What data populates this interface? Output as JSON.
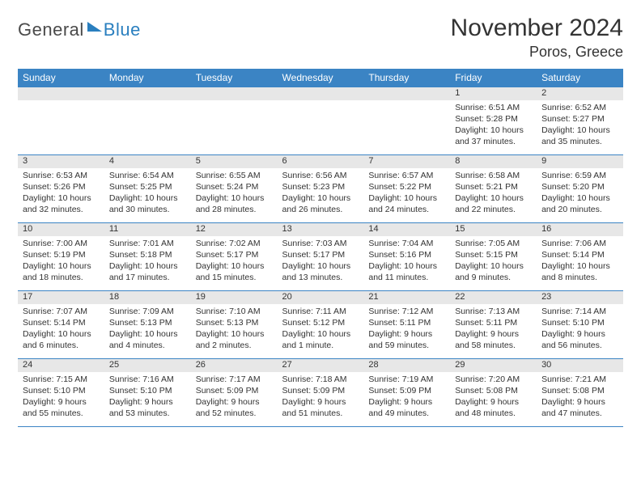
{
  "logo": {
    "text1": "General",
    "text2": "Blue"
  },
  "title": "November 2024",
  "location": "Poros, Greece",
  "colors": {
    "header_bg": "#3b84c4",
    "header_text": "#ffffff",
    "daynum_bg": "#e7e7e7",
    "border": "#3b84c4",
    "text": "#333333",
    "logo_gray": "#4a4a4a",
    "logo_blue": "#2a7fbf"
  },
  "weekdays": [
    "Sunday",
    "Monday",
    "Tuesday",
    "Wednesday",
    "Thursday",
    "Friday",
    "Saturday"
  ],
  "weeks": [
    [
      null,
      null,
      null,
      null,
      null,
      {
        "n": "1",
        "sr": "6:51 AM",
        "ss": "5:28 PM",
        "dl": "10 hours and 37 minutes."
      },
      {
        "n": "2",
        "sr": "6:52 AM",
        "ss": "5:27 PM",
        "dl": "10 hours and 35 minutes."
      }
    ],
    [
      {
        "n": "3",
        "sr": "6:53 AM",
        "ss": "5:26 PM",
        "dl": "10 hours and 32 minutes."
      },
      {
        "n": "4",
        "sr": "6:54 AM",
        "ss": "5:25 PM",
        "dl": "10 hours and 30 minutes."
      },
      {
        "n": "5",
        "sr": "6:55 AM",
        "ss": "5:24 PM",
        "dl": "10 hours and 28 minutes."
      },
      {
        "n": "6",
        "sr": "6:56 AM",
        "ss": "5:23 PM",
        "dl": "10 hours and 26 minutes."
      },
      {
        "n": "7",
        "sr": "6:57 AM",
        "ss": "5:22 PM",
        "dl": "10 hours and 24 minutes."
      },
      {
        "n": "8",
        "sr": "6:58 AM",
        "ss": "5:21 PM",
        "dl": "10 hours and 22 minutes."
      },
      {
        "n": "9",
        "sr": "6:59 AM",
        "ss": "5:20 PM",
        "dl": "10 hours and 20 minutes."
      }
    ],
    [
      {
        "n": "10",
        "sr": "7:00 AM",
        "ss": "5:19 PM",
        "dl": "10 hours and 18 minutes."
      },
      {
        "n": "11",
        "sr": "7:01 AM",
        "ss": "5:18 PM",
        "dl": "10 hours and 17 minutes."
      },
      {
        "n": "12",
        "sr": "7:02 AM",
        "ss": "5:17 PM",
        "dl": "10 hours and 15 minutes."
      },
      {
        "n": "13",
        "sr": "7:03 AM",
        "ss": "5:17 PM",
        "dl": "10 hours and 13 minutes."
      },
      {
        "n": "14",
        "sr": "7:04 AM",
        "ss": "5:16 PM",
        "dl": "10 hours and 11 minutes."
      },
      {
        "n": "15",
        "sr": "7:05 AM",
        "ss": "5:15 PM",
        "dl": "10 hours and 9 minutes."
      },
      {
        "n": "16",
        "sr": "7:06 AM",
        "ss": "5:14 PM",
        "dl": "10 hours and 8 minutes."
      }
    ],
    [
      {
        "n": "17",
        "sr": "7:07 AM",
        "ss": "5:14 PM",
        "dl": "10 hours and 6 minutes."
      },
      {
        "n": "18",
        "sr": "7:09 AM",
        "ss": "5:13 PM",
        "dl": "10 hours and 4 minutes."
      },
      {
        "n": "19",
        "sr": "7:10 AM",
        "ss": "5:13 PM",
        "dl": "10 hours and 2 minutes."
      },
      {
        "n": "20",
        "sr": "7:11 AM",
        "ss": "5:12 PM",
        "dl": "10 hours and 1 minute."
      },
      {
        "n": "21",
        "sr": "7:12 AM",
        "ss": "5:11 PM",
        "dl": "9 hours and 59 minutes."
      },
      {
        "n": "22",
        "sr": "7:13 AM",
        "ss": "5:11 PM",
        "dl": "9 hours and 58 minutes."
      },
      {
        "n": "23",
        "sr": "7:14 AM",
        "ss": "5:10 PM",
        "dl": "9 hours and 56 minutes."
      }
    ],
    [
      {
        "n": "24",
        "sr": "7:15 AM",
        "ss": "5:10 PM",
        "dl": "9 hours and 55 minutes."
      },
      {
        "n": "25",
        "sr": "7:16 AM",
        "ss": "5:10 PM",
        "dl": "9 hours and 53 minutes."
      },
      {
        "n": "26",
        "sr": "7:17 AM",
        "ss": "5:09 PM",
        "dl": "9 hours and 52 minutes."
      },
      {
        "n": "27",
        "sr": "7:18 AM",
        "ss": "5:09 PM",
        "dl": "9 hours and 51 minutes."
      },
      {
        "n": "28",
        "sr": "7:19 AM",
        "ss": "5:09 PM",
        "dl": "9 hours and 49 minutes."
      },
      {
        "n": "29",
        "sr": "7:20 AM",
        "ss": "5:08 PM",
        "dl": "9 hours and 48 minutes."
      },
      {
        "n": "30",
        "sr": "7:21 AM",
        "ss": "5:08 PM",
        "dl": "9 hours and 47 minutes."
      }
    ]
  ],
  "labels": {
    "sunrise": "Sunrise:",
    "sunset": "Sunset:",
    "daylight": "Daylight:"
  }
}
